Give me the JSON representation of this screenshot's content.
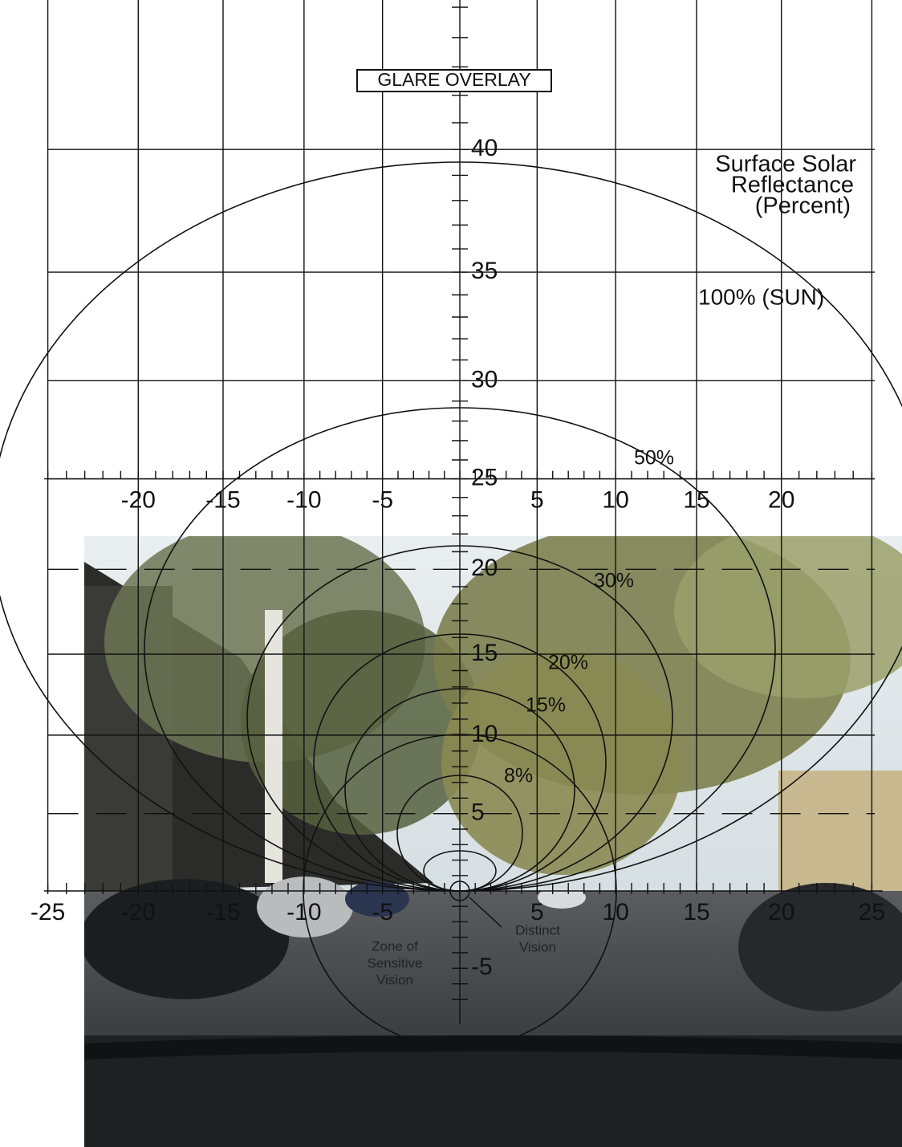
{
  "title": "GLARE OVERLAY",
  "legend": {
    "lines": [
      "Surface Solar",
      "Reflectance",
      "(Percent)"
    ]
  },
  "contour_labels": [
    "100% (SUN)",
    "50%",
    "30%",
    "20%",
    "15%",
    "8%"
  ],
  "zone_labels": {
    "sensitive": [
      "Zone of",
      "Sensitive",
      "Vision"
    ],
    "distinct": [
      "Distinct",
      "Vision"
    ]
  },
  "upper_axis": {
    "ticks": [
      -20,
      -15,
      -10,
      -5,
      5,
      10,
      15,
      20
    ]
  },
  "lower_axis": {
    "ticks": [
      -25,
      -20,
      -15,
      -10,
      -5,
      5,
      10,
      15,
      20,
      25
    ]
  },
  "vertical_axis": {
    "ticks": [
      40,
      35,
      30,
      25,
      20,
      15,
      10,
      5,
      -5
    ]
  }
}
